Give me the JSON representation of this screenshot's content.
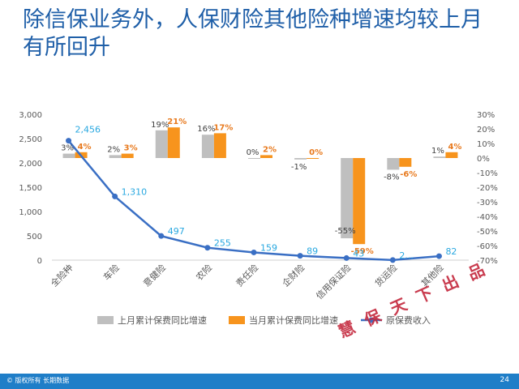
{
  "slide": {
    "title": "除信保业务外，人保财险其他险种增速均较上月有所回升",
    "footer_left": "© 版权所有 长期数据",
    "page_number": "24",
    "stamp": "慧 保 天 下 出 品"
  },
  "colors": {
    "title": "#1f5fa8",
    "prev_bar": "#bfbfbf",
    "curr_bar": "#f7941d",
    "line": "#3a6fc4",
    "line_label": "#29a8e0",
    "curr_label": "#e87a1e",
    "footer": "#1f7ec8",
    "stamp": "#c4283c"
  },
  "chart_data": {
    "type": "bar+line",
    "categories": [
      "全险种",
      "车险",
      "意健险",
      "农险",
      "责任险",
      "企财险",
      "信用保证险",
      "货运险",
      "其他险"
    ],
    "series": [
      {
        "name": "上月累计保费同比增速",
        "kind": "bar",
        "axis": "right",
        "values": [
          3,
          2,
          19,
          16,
          0,
          -1,
          -55,
          -8,
          1
        ],
        "labels": [
          "3%",
          "2%",
          "19%",
          "16%",
          "0%",
          "-1%",
          "-55%",
          "-8%",
          "1%"
        ]
      },
      {
        "name": "当月累计保费同比增速",
        "kind": "bar",
        "axis": "right",
        "values": [
          4,
          3,
          21,
          17,
          2,
          0,
          -59,
          -6,
          4
        ],
        "labels": [
          "4%",
          "3%",
          "21%",
          "17%",
          "2%",
          "0%",
          "-59%",
          "-6%",
          "4%"
        ]
      },
      {
        "name": "原保费收入",
        "kind": "line",
        "axis": "left",
        "values": [
          2456,
          1310,
          497,
          255,
          159,
          89,
          43,
          2,
          82
        ],
        "labels": [
          "2,456",
          "1,310",
          "497",
          "255",
          "159",
          "89",
          "43",
          "2...",
          "82"
        ]
      }
    ],
    "y_left": {
      "min": 0,
      "max": 3000,
      "ticks": [
        "0",
        "500",
        "1,000",
        "1,500",
        "2,000",
        "2,500",
        "3,000"
      ]
    },
    "y_right": {
      "min": -70,
      "max": 30,
      "ticks": [
        "-70%",
        "-60%",
        "-50%",
        "-40%",
        "-30%",
        "-20%",
        "-10%",
        "0%",
        "10%",
        "20%",
        "30%"
      ]
    },
    "legend_position": "bottom",
    "grid": false
  }
}
